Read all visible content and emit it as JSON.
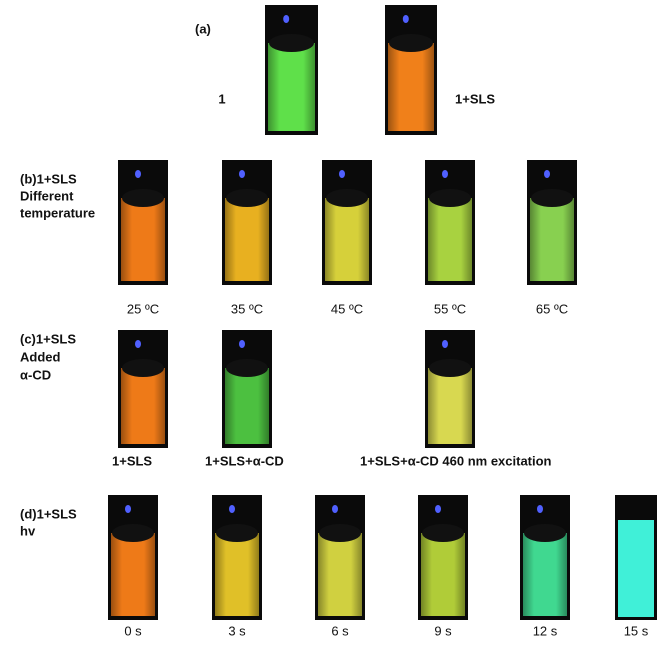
{
  "panel_a": {
    "label": "(a)",
    "samples": [
      "1",
      "1+SLS"
    ]
  },
  "panel_b": {
    "label_lines": [
      "(b)1+SLS",
      "Different",
      "temperature"
    ],
    "samples": [
      "25 ºC",
      "35 ºC",
      "45 ºC",
      "55 ºC",
      "65 ºC"
    ]
  },
  "panel_c": {
    "label_lines": [
      "(c)1+SLS",
      "Added",
      "α-CD"
    ],
    "samples": [
      "1+SLS",
      "1+SLS+α-CD",
      "1+SLS+α-CD 460 nm excitation"
    ]
  },
  "panel_d": {
    "label_lines": [
      "(d)1+SLS",
      "hv"
    ],
    "samples": [
      "0 s",
      "3 s",
      "6 s",
      "9 s",
      "12 s",
      "15 s"
    ]
  }
}
